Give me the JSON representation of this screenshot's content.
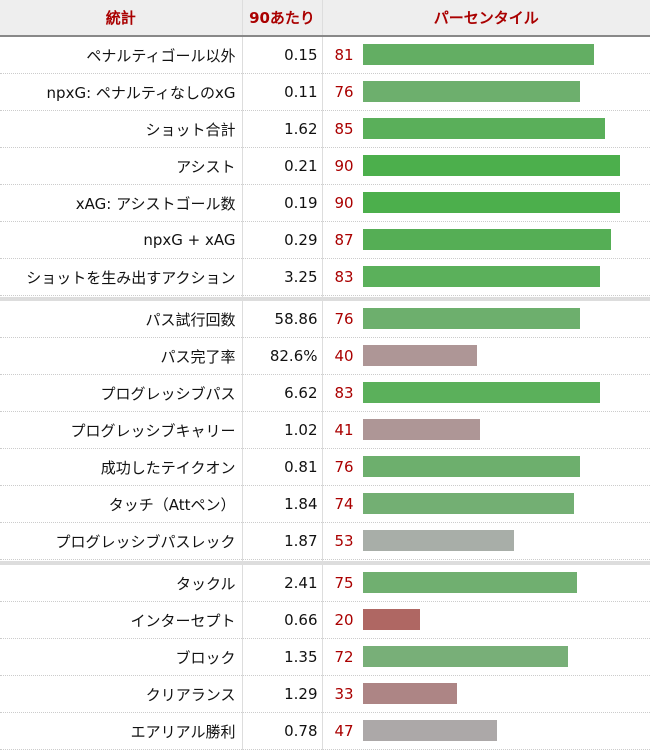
{
  "header": {
    "stat": "統計",
    "per90": "90あたり",
    "percentile": "パーセンタイル"
  },
  "groups": [
    [
      {
        "stat": "ペナルティゴール以外",
        "per90": "0.15",
        "percentile": 81,
        "color": "#63ae63"
      },
      {
        "stat": "npxG: ペナルティなしのxG",
        "per90": "0.11",
        "percentile": 76,
        "color": "#6daf6d"
      },
      {
        "stat": "ショット合計",
        "per90": "1.62",
        "percentile": 85,
        "color": "#5aaf5a"
      },
      {
        "stat": "アシスト",
        "per90": "0.21",
        "percentile": 90,
        "color": "#4caf4c"
      },
      {
        "stat": "xAG: アシストゴール数",
        "per90": "0.19",
        "percentile": 90,
        "color": "#4caf4c"
      },
      {
        "stat": "npxG + xAG",
        "per90": "0.29",
        "percentile": 87,
        "color": "#55ae55"
      },
      {
        "stat": "ショットを生み出すアクション",
        "per90": "3.25",
        "percentile": 83,
        "color": "#5bb05b"
      }
    ],
    [
      {
        "stat": "パス試行回数",
        "per90": "58.86",
        "percentile": 76,
        "color": "#6daf6d"
      },
      {
        "stat": "パス完了率",
        "per90": "82.6%",
        "percentile": 40,
        "color": "#ae9696"
      },
      {
        "stat": "プログレッシブパス",
        "per90": "6.62",
        "percentile": 83,
        "color": "#5bb05b"
      },
      {
        "stat": "プログレッシブキャリー",
        "per90": "1.02",
        "percentile": 41,
        "color": "#ae9696"
      },
      {
        "stat": "成功したテイクオン",
        "per90": "0.81",
        "percentile": 76,
        "color": "#6daf6d"
      },
      {
        "stat": "タッチ（Attペン）",
        "per90": "1.84",
        "percentile": 74,
        "color": "#73af73"
      },
      {
        "stat": "プログレッシブパスレック",
        "per90": "1.87",
        "percentile": 53,
        "color": "#a8aea8"
      }
    ],
    [
      {
        "stat": "タックル",
        "per90": "2.41",
        "percentile": 75,
        "color": "#70af70"
      },
      {
        "stat": "インターセプト",
        "per90": "0.66",
        "percentile": 20,
        "color": "#af6763"
      },
      {
        "stat": "ブロック",
        "per90": "1.35",
        "percentile": 72,
        "color": "#78af78"
      },
      {
        "stat": "クリアランス",
        "per90": "1.29",
        "percentile": 33,
        "color": "#ad8585"
      },
      {
        "stat": "エアリアル勝利",
        "per90": "0.78",
        "percentile": 47,
        "color": "#aca8a8"
      }
    ]
  ]
}
